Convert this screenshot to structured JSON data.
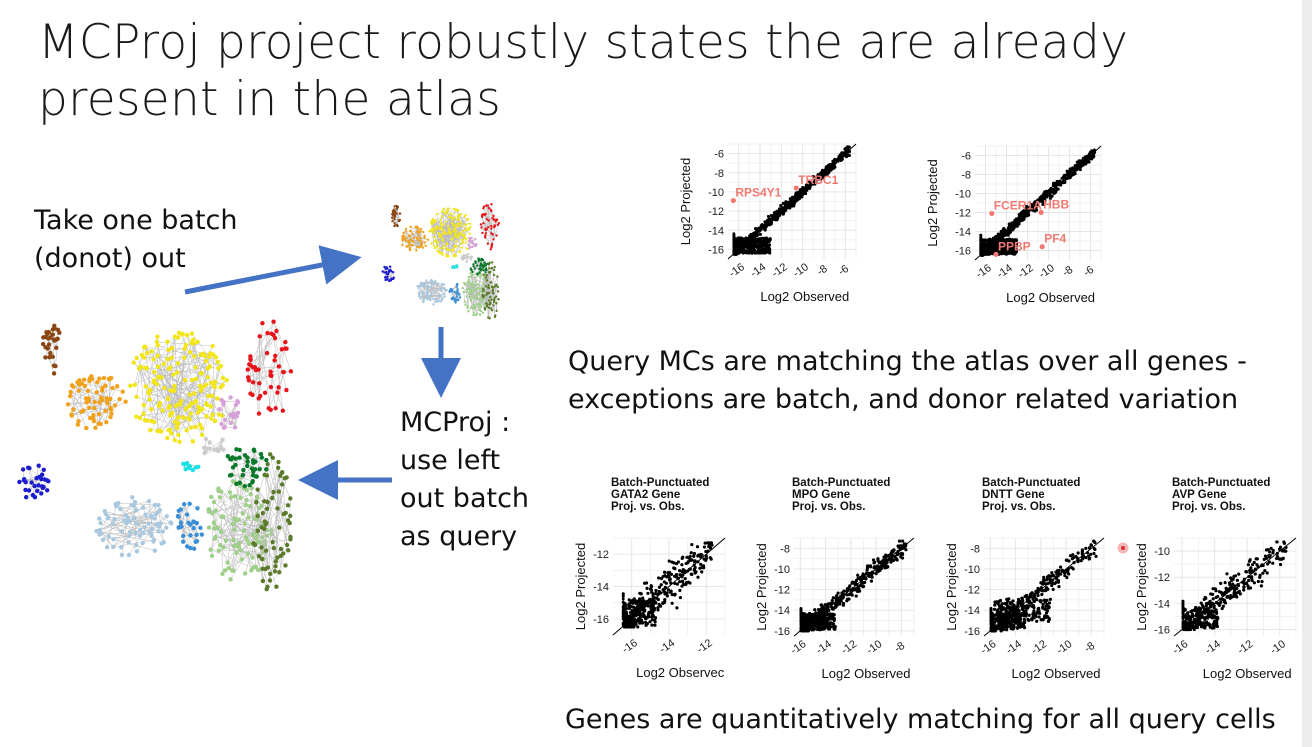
{
  "slide": {
    "title": "MCProj project robustly states the are already present in the atlas",
    "left_text": "Take one batch (donot) out",
    "mcproj_text": "MCProj : use left out batch as query",
    "caption_top": "Query MCs are matching the atlas over all genes - exceptions are batch, and donor related variation",
    "caption_bottom": "Genes are quantitatively matching for all query cells",
    "colors": {
      "arrow": "#4472c4",
      "annotation": "#f07a72",
      "points": "#000000"
    }
  },
  "chart_data": [
    {
      "type": "scatter",
      "xlabel": "Log2 Observed",
      "ylabel": "Log2 Projected",
      "xlim": [
        -17,
        -5
      ],
      "ylim": [
        -17,
        -5
      ],
      "xticks": [
        -16,
        -14,
        -12,
        -10,
        -8,
        -6
      ],
      "yticks": [
        -16,
        -14,
        -12,
        -10,
        -8,
        -6
      ],
      "annotations": [
        {
          "text": "TRBC1",
          "x": -10.6,
          "y": -9.6
        },
        {
          "text": "RPS4Y1",
          "x": -16.5,
          "y": -10.9
        }
      ],
      "grid": true
    },
    {
      "type": "scatter",
      "xlabel": "Log2 Observed",
      "ylabel": "Log2 Projected",
      "xlim": [
        -17,
        -5
      ],
      "ylim": [
        -17,
        -5
      ],
      "xticks": [
        -16,
        -14,
        -12,
        -10,
        -8,
        -6
      ],
      "yticks": [
        -16,
        -14,
        -12,
        -10,
        -8,
        -6
      ],
      "annotations": [
        {
          "text": "FCER1A",
          "x": -15.4,
          "y": -12.1
        },
        {
          "text": "HBB",
          "x": -10.7,
          "y": -12.0
        },
        {
          "text": "PPBP",
          "x": -15.0,
          "y": -16.4
        },
        {
          "text": "PF4",
          "x": -10.6,
          "y": -15.6
        }
      ],
      "grid": true
    },
    {
      "type": "scatter",
      "title": [
        "Batch-Punctuated",
        "GATA2 Gene",
        "Proj. vs. Obs."
      ],
      "xlabel": "Log2 Observec",
      "ylabel": "Log2 Projected",
      "xlim": [
        -17,
        -11
      ],
      "ylim": [
        -17,
        -11
      ],
      "xticks": [
        -16,
        -14,
        -12
      ],
      "yticks": [
        -16,
        -14,
        -12
      ],
      "grid": true
    },
    {
      "type": "scatter",
      "title": [
        "Batch-Punctuated",
        "MPO Gene",
        "Proj. vs. Obs."
      ],
      "xlabel": "Log2 Observed",
      "ylabel": "Log2 Projected",
      "xlim": [
        -16.5,
        -7
      ],
      "ylim": [
        -16.5,
        -7
      ],
      "xticks": [
        -16,
        -14,
        -12,
        -10,
        -8
      ],
      "yticks": [
        -16,
        -14,
        -12,
        -10,
        -8
      ],
      "grid": true
    },
    {
      "type": "scatter",
      "title": [
        "Batch-Punctuated",
        "DNTT Gene",
        "Proj. vs. Obs."
      ],
      "xlabel": "Log2 Observed",
      "ylabel": "Log2 Projected",
      "xlim": [
        -16.5,
        -7
      ],
      "ylim": [
        -16.5,
        -7
      ],
      "xticks": [
        -16,
        -14,
        -12,
        -10,
        -8
      ],
      "yticks": [
        -16,
        -14,
        -12,
        -10,
        -8
      ],
      "grid": true
    },
    {
      "type": "scatter",
      "title": [
        "Batch-Punctuated",
        "AVP Gene",
        "Proj. vs. Obs."
      ],
      "xlabel": "Log2 Observed",
      "ylabel": "Log2 Projected",
      "xlim": [
        -16.5,
        -9
      ],
      "ylim": [
        -16.5,
        -9
      ],
      "xticks": [
        -16,
        -14,
        -12,
        -10
      ],
      "yticks": [
        -16,
        -14,
        -12,
        -10
      ],
      "grid": true
    }
  ]
}
